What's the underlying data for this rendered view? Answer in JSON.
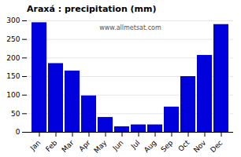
{
  "chart_data": {
    "type": "bar",
    "title": "Araxá : precipitation (mm)",
    "categories": [
      "Jan",
      "Feb",
      "Mar",
      "Apr",
      "May",
      "Jun",
      "Jul",
      "Aug",
      "Sep",
      "Oct",
      "Nov",
      "Dec"
    ],
    "values": [
      295,
      185,
      165,
      98,
      40,
      15,
      20,
      20,
      68,
      150,
      207,
      290
    ],
    "color": "#0000dd",
    "ylim": [
      0,
      300
    ],
    "yticks": [
      0,
      50,
      100,
      150,
      200,
      250,
      300
    ],
    "grid": true,
    "annotations": [
      "www.allmetsat.com"
    ]
  }
}
